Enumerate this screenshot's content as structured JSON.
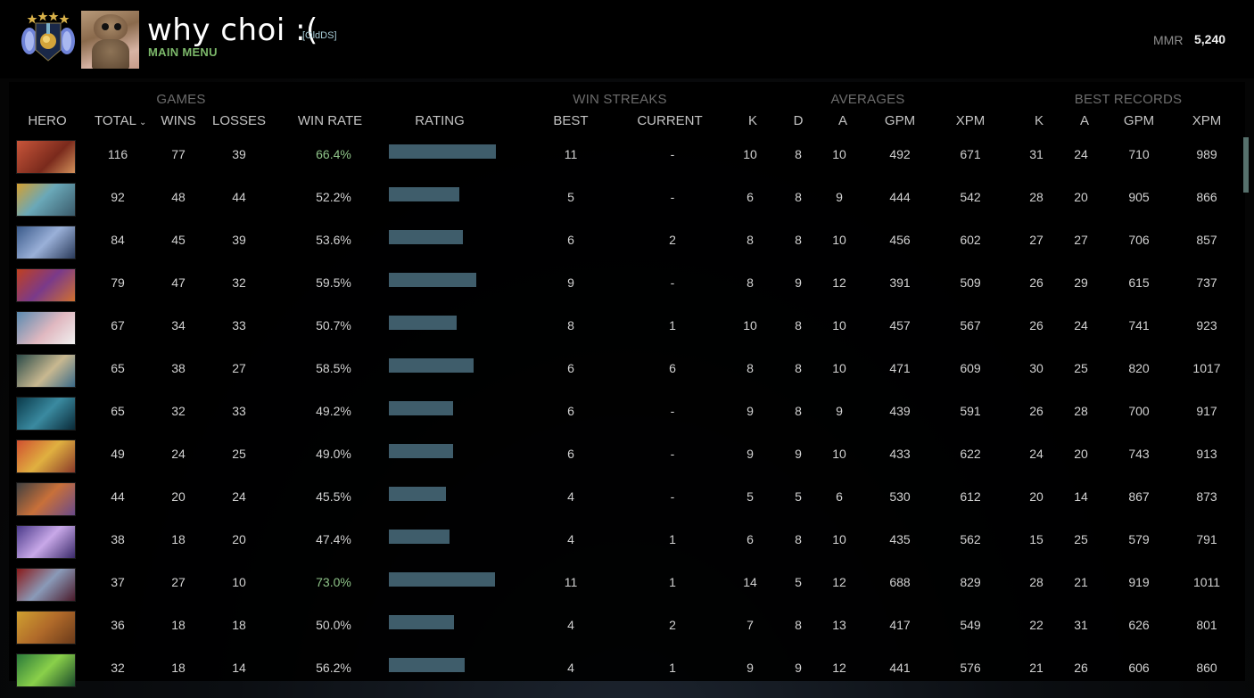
{
  "header": {
    "player_name": "why choi :(",
    "team_tag": "[OldDS]",
    "main_menu_label": "MAIN MENU",
    "mmr_label": "MMR",
    "mmr_value": "5,240"
  },
  "table": {
    "groups": {
      "games": "GAMES",
      "win_streaks": "WIN STREAKS",
      "averages": "AVERAGES",
      "best_records": "BEST RECORDS"
    },
    "columns": {
      "hero": "HERO",
      "total": "TOTAL",
      "wins": "WINS",
      "losses": "LOSSES",
      "win_rate": "WIN RATE",
      "rating": "RATING",
      "best": "BEST",
      "current": "CURRENT",
      "avg_k": "K",
      "avg_d": "D",
      "avg_a": "A",
      "avg_gpm": "GPM",
      "avg_xpm": "XPM",
      "rec_k": "K",
      "rec_a": "A",
      "rec_gpm": "GPM",
      "rec_xpm": "XPM"
    },
    "sort_indicator": "chevron-down",
    "rows": [
      {
        "hero_icon": "hero-portrait-ogre",
        "total": "116",
        "wins": "77",
        "losses": "39",
        "win_rate": "66.4%",
        "rating_pct": 100,
        "highlight": true,
        "best": "11",
        "current": "-",
        "k": "10",
        "d": "8",
        "a": "10",
        "gpm": "492",
        "xpm": "671",
        "rk": "31",
        "ra": "24",
        "rgpm": "710",
        "rxpm": "989"
      },
      {
        "hero_icon": "hero-portrait-blue-beast",
        "total": "92",
        "wins": "48",
        "losses": "44",
        "win_rate": "52.2%",
        "rating_pct": 66,
        "highlight": false,
        "best": "5",
        "current": "-",
        "k": "6",
        "d": "8",
        "a": "9",
        "gpm": "444",
        "xpm": "542",
        "rk": "28",
        "ra": "20",
        "rgpm": "905",
        "rxpm": "866"
      },
      {
        "hero_icon": "hero-portrait-ranger",
        "total": "84",
        "wins": "45",
        "losses": "39",
        "win_rate": "53.6%",
        "rating_pct": 69,
        "highlight": false,
        "best": "6",
        "current": "2",
        "k": "8",
        "d": "8",
        "a": "10",
        "gpm": "456",
        "xpm": "602",
        "rk": "27",
        "ra": "27",
        "rgpm": "706",
        "rxpm": "857"
      },
      {
        "hero_icon": "hero-portrait-demon",
        "total": "79",
        "wins": "47",
        "losses": "32",
        "win_rate": "59.5%",
        "rating_pct": 82,
        "highlight": false,
        "best": "9",
        "current": "-",
        "k": "8",
        "d": "9",
        "a": "12",
        "gpm": "391",
        "xpm": "509",
        "rk": "26",
        "ra": "29",
        "rgpm": "615",
        "rxpm": "737"
      },
      {
        "hero_icon": "hero-portrait-engineer",
        "total": "67",
        "wins": "34",
        "losses": "33",
        "win_rate": "50.7%",
        "rating_pct": 63,
        "highlight": false,
        "best": "8",
        "current": "1",
        "k": "10",
        "d": "8",
        "a": "10",
        "gpm": "457",
        "xpm": "567",
        "rk": "26",
        "ra": "24",
        "rgpm": "741",
        "rxpm": "923"
      },
      {
        "hero_icon": "hero-portrait-spear-mage",
        "total": "65",
        "wins": "38",
        "losses": "27",
        "win_rate": "58.5%",
        "rating_pct": 79,
        "highlight": false,
        "best": "6",
        "current": "6",
        "k": "8",
        "d": "8",
        "a": "10",
        "gpm": "471",
        "xpm": "609",
        "rk": "30",
        "ra": "25",
        "rgpm": "820",
        "rxpm": "1017"
      },
      {
        "hero_icon": "hero-portrait-phantom",
        "total": "65",
        "wins": "32",
        "losses": "33",
        "win_rate": "49.2%",
        "rating_pct": 60,
        "highlight": false,
        "best": "6",
        "current": "-",
        "k": "9",
        "d": "8",
        "a": "9",
        "gpm": "439",
        "xpm": "591",
        "rk": "26",
        "ra": "28",
        "rgpm": "700",
        "rxpm": "917"
      },
      {
        "hero_icon": "hero-portrait-warrior",
        "total": "49",
        "wins": "24",
        "losses": "25",
        "win_rate": "49.0%",
        "rating_pct": 60,
        "highlight": false,
        "best": "6",
        "current": "-",
        "k": "9",
        "d": "9",
        "a": "10",
        "gpm": "433",
        "xpm": "622",
        "rk": "24",
        "ra": "20",
        "rgpm": "743",
        "rxpm": "913"
      },
      {
        "hero_icon": "hero-portrait-assassin",
        "total": "44",
        "wins": "20",
        "losses": "24",
        "win_rate": "45.5%",
        "rating_pct": 53,
        "highlight": false,
        "best": "4",
        "current": "-",
        "k": "5",
        "d": "5",
        "a": "6",
        "gpm": "530",
        "xpm": "612",
        "rk": "20",
        "ra": "14",
        "rgpm": "867",
        "rxpm": "873"
      },
      {
        "hero_icon": "hero-portrait-violet",
        "total": "38",
        "wins": "18",
        "losses": "20",
        "win_rate": "47.4%",
        "rating_pct": 57,
        "highlight": false,
        "best": "4",
        "current": "1",
        "k": "6",
        "d": "8",
        "a": "10",
        "gpm": "435",
        "xpm": "562",
        "rk": "15",
        "ra": "25",
        "rgpm": "579",
        "rxpm": "791"
      },
      {
        "hero_icon": "hero-portrait-queen",
        "total": "37",
        "wins": "27",
        "losses": "10",
        "win_rate": "73.0%",
        "rating_pct": 99,
        "highlight": true,
        "best": "11",
        "current": "1",
        "k": "14",
        "d": "5",
        "a": "12",
        "gpm": "688",
        "xpm": "829",
        "rk": "28",
        "ra": "21",
        "rgpm": "919",
        "rxpm": "1011"
      },
      {
        "hero_icon": "hero-portrait-monkey",
        "total": "36",
        "wins": "18",
        "losses": "18",
        "win_rate": "50.0%",
        "rating_pct": 61,
        "highlight": false,
        "best": "4",
        "current": "2",
        "k": "7",
        "d": "8",
        "a": "13",
        "gpm": "417",
        "xpm": "549",
        "rk": "22",
        "ra": "31",
        "rgpm": "626",
        "rxpm": "801"
      },
      {
        "hero_icon": "hero-portrait-venom",
        "total": "32",
        "wins": "18",
        "losses": "14",
        "win_rate": "56.2%",
        "rating_pct": 71,
        "highlight": false,
        "best": "4",
        "current": "1",
        "k": "9",
        "d": "9",
        "a": "12",
        "gpm": "441",
        "xpm": "576",
        "rk": "21",
        "ra": "26",
        "rgpm": "606",
        "rxpm": "860"
      }
    ]
  },
  "colors": {
    "accent_green": "#7cb86a",
    "win_rate_high": "#8fc489",
    "rating_bar": "#3f5d6b",
    "team_tag": "#a9cdd8",
    "scrollbar": "#56706c"
  }
}
